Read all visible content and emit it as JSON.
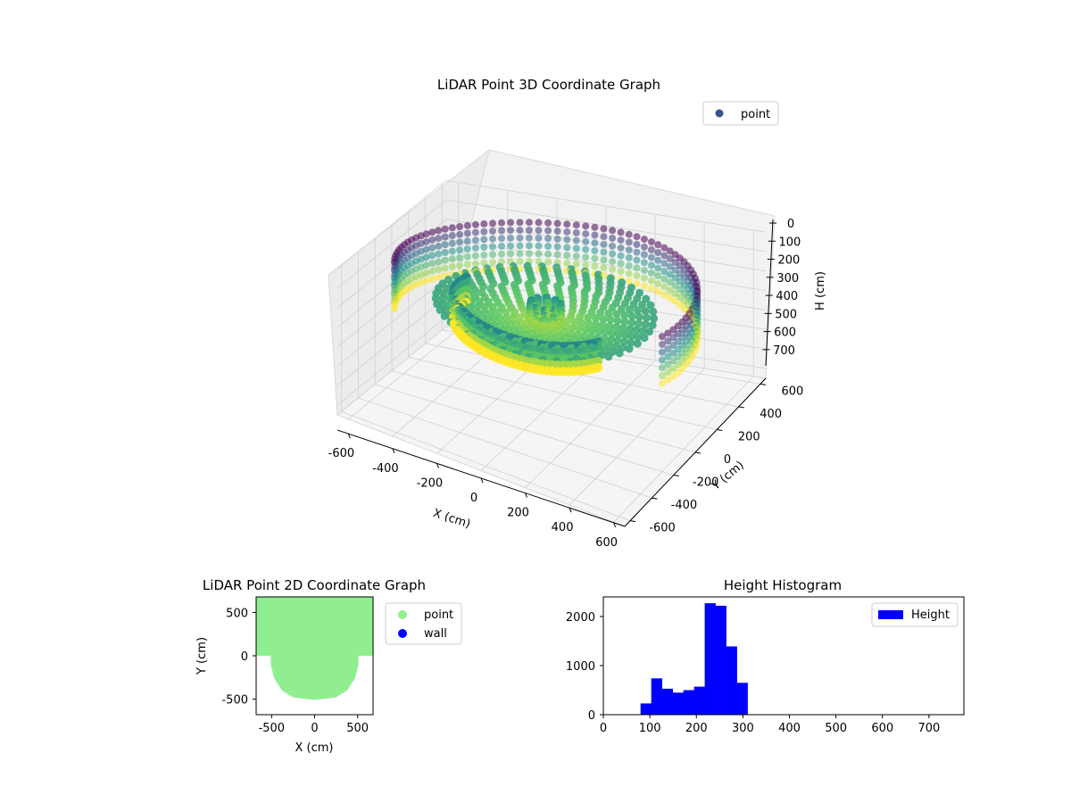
{
  "chart_data": [
    {
      "type": "scatter",
      "projection": "3d",
      "title": "LiDAR Point 3D Coordinate Graph",
      "xlabel": "X (cm)",
      "ylabel": "Y (cm)",
      "zlabel": "H (cm)",
      "xlim": [
        -650,
        650
      ],
      "ylim": [
        -650,
        650
      ],
      "zlim": [
        750,
        0
      ],
      "xticks": [
        -600,
        -400,
        -200,
        0,
        200,
        400,
        600
      ],
      "yticks": [
        -600,
        -400,
        -200,
        0,
        200,
        400,
        600
      ],
      "zticks": [
        0,
        100,
        200,
        300,
        400,
        500,
        600,
        700
      ],
      "legend": {
        "position": "top-right",
        "entries": [
          "point"
        ]
      },
      "legend_color": "#3b528b",
      "colormap": "viridis",
      "grid": true,
      "series": [
        {
          "name": "point",
          "shape": "outer-wall-ring",
          "radius": 600,
          "height_range": [
            90,
            330
          ],
          "angle_range_deg": [
            -15,
            200
          ]
        },
        {
          "name": "point",
          "shape": "inner-wall-arc",
          "radius": 360,
          "height_range": [
            200,
            330
          ],
          "angle_range_deg": [
            170,
            330
          ]
        },
        {
          "name": "point",
          "shape": "floor-disk",
          "radius": 450,
          "height_range": [
            230,
            300
          ]
        },
        {
          "name": "point",
          "shape": "center-pillar",
          "radius": 60,
          "height_range": [
            210,
            300
          ]
        }
      ]
    },
    {
      "type": "scatter",
      "title": "LiDAR Point 2D Coordinate Graph",
      "xlabel": "X (cm)",
      "ylabel": "Y (cm)",
      "xlim": [
        -680,
        680
      ],
      "ylim": [
        -680,
        680
      ],
      "xticks": [
        -500,
        0,
        500
      ],
      "yticks": [
        -500,
        0,
        500
      ],
      "legend": {
        "position": "outside-right",
        "entries": [
          {
            "name": "point",
            "color": "#90ee90"
          },
          {
            "name": "wall",
            "color": "#0000ff"
          }
        ]
      },
      "region_outline": [
        [
          -680,
          680
        ],
        [
          -680,
          0
        ],
        [
          -510,
          0
        ],
        [
          -510,
          -100
        ],
        [
          -470,
          -260
        ],
        [
          -380,
          -400
        ],
        [
          -250,
          -480
        ],
        [
          0,
          -510
        ],
        [
          250,
          -480
        ],
        [
          380,
          -400
        ],
        [
          470,
          -260
        ],
        [
          510,
          -100
        ],
        [
          510,
          0
        ],
        [
          680,
          0
        ],
        [
          680,
          680
        ]
      ]
    },
    {
      "type": "bar",
      "histogram": true,
      "title": "Height Histogram",
      "xlabel": "",
      "ylabel": "",
      "color": "#0000ff",
      "legend": {
        "position": "top-right",
        "entries": [
          "Height"
        ]
      },
      "xlim": [
        0,
        775
      ],
      "ylim": [
        0,
        2400
      ],
      "xticks": [
        0,
        100,
        200,
        300,
        400,
        500,
        600,
        700
      ],
      "yticks": [
        0,
        1000,
        2000
      ],
      "bins": [
        {
          "x0": 80,
          "x1": 103,
          "value": 230
        },
        {
          "x0": 103,
          "x1": 126,
          "value": 740
        },
        {
          "x0": 126,
          "x1": 149,
          "value": 530
        },
        {
          "x0": 149,
          "x1": 172,
          "value": 450
        },
        {
          "x0": 172,
          "x1": 195,
          "value": 500
        },
        {
          "x0": 195,
          "x1": 218,
          "value": 570
        },
        {
          "x0": 218,
          "x1": 241,
          "value": 2270
        },
        {
          "x0": 241,
          "x1": 264,
          "value": 2220
        },
        {
          "x0": 264,
          "x1": 287,
          "value": 1390
        },
        {
          "x0": 287,
          "x1": 310,
          "value": 650
        }
      ]
    }
  ]
}
